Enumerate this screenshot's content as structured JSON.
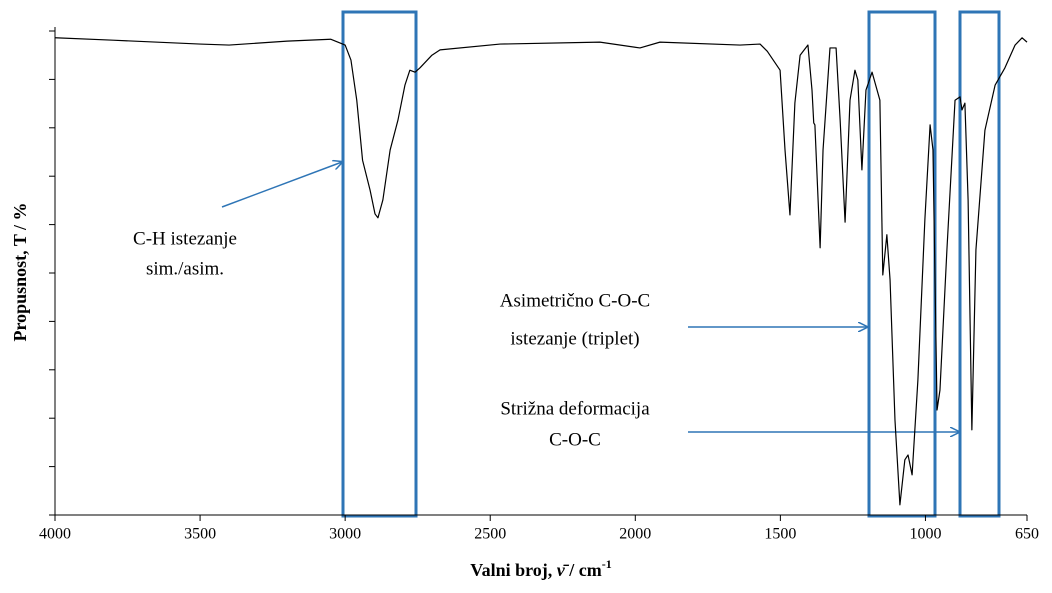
{
  "chart_data": {
    "type": "line",
    "x_label": "Valni broj, ",
    "x_label_symbol": "ν̄",
    "x_label_unit": " / cm",
    "x_label_sup": "-1",
    "y_label": "Propusnost, T / %",
    "color": "#000000",
    "xlim": [
      4000,
      650
    ],
    "xticks": [
      4000,
      3500,
      3000,
      2500,
      2000,
      1500,
      1000,
      650
    ],
    "ylim": [
      0,
      100
    ],
    "yticks": [
      0,
      10,
      20,
      30,
      40,
      50,
      60,
      70,
      80,
      90,
      100
    ],
    "x": [
      4000,
      3800,
      3500,
      3400,
      3200,
      3050,
      3000,
      2980,
      2960,
      2940,
      2914,
      2897,
      2887,
      2870,
      2845,
      2818,
      2794,
      2777,
      2759,
      2742,
      2701,
      2673,
      2466,
      2122,
      1984,
      1915,
      1639,
      1570,
      1545,
      1536,
      1501,
      1484,
      1467,
      1450,
      1432,
      1405,
      1391,
      1385,
      1381,
      1363,
      1353,
      1329,
      1308,
      1294,
      1277,
      1260,
      1243,
      1233,
      1219,
      1205,
      1184,
      1157,
      1147,
      1133,
      1122,
      1105,
      1088,
      1071,
      1060,
      1046,
      1026,
      1002,
      984,
      974,
      960,
      950,
      926,
      898,
      881,
      874,
      864,
      853,
      840,
      826,
      795,
      760,
      726,
      691,
      667,
      650
    ],
    "values": [
      98.6,
      98.1,
      97.3,
      97.1,
      97.9,
      98.3,
      97.1,
      94,
      85.7,
      73.3,
      67.1,
      62.2,
      61.4,
      65.1,
      75.4,
      81.6,
      88.8,
      91.9,
      91.5,
      92.4,
      95,
      96.1,
      97.3,
      97.7,
      96.5,
      97.7,
      97.1,
      97.3,
      95.8,
      95,
      91.9,
      75.4,
      62,
      85.1,
      95,
      97.1,
      87.8,
      81,
      80.6,
      55.2,
      75.4,
      96.5,
      96.5,
      81.6,
      60.5,
      85.7,
      91.9,
      89.9,
      71.3,
      87.8,
      91.5,
      85.7,
      49.6,
      57.9,
      48.6,
      19.6,
      2.1,
      11.4,
      12.4,
      8.3,
      27.9,
      61,
      80.6,
      75.4,
      21.7,
      25.8,
      54.8,
      85.7,
      86.4,
      83.7,
      85.1,
      65.1,
      17.6,
      54.8,
      79.5,
      88.8,
      92.4,
      97.1,
      98.6,
      97.7
    ],
    "annotations": [
      {
        "lines": [
          "C-H istezanje",
          "sim./asim."
        ]
      },
      {
        "lines": [
          "Asimetrično C-O-C",
          "istezanje (triplet)"
        ]
      },
      {
        "lines": [
          "Strižna deformacija",
          "C-O-C"
        ]
      }
    ]
  }
}
